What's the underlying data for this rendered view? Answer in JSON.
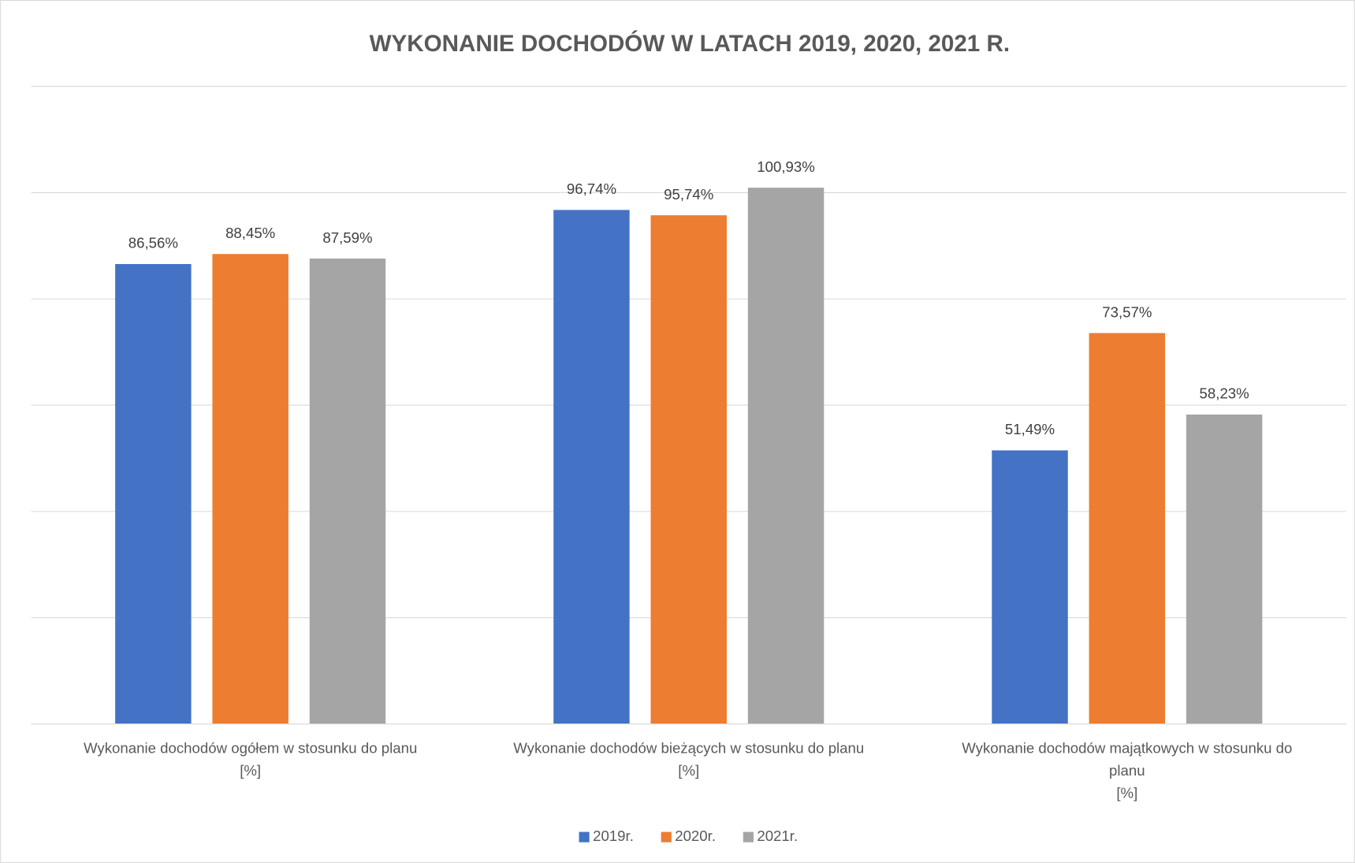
{
  "chart_data": {
    "type": "bar",
    "title": "WYKONANIE DOCHODÓW W LATACH 2019, 2020, 2021 R.",
    "categories": [
      "Wykonanie dochodów ogółem w stosunku do planu\n[%]",
      "Wykonanie dochodów bieżących w stosunku do planu\n[%]",
      "Wykonanie dochodów majątkowych w stosunku do\nplanu\n[%]"
    ],
    "series": [
      {
        "name": "2019r.",
        "color": "#4472c4",
        "values": [
          86.56,
          96.74,
          51.49
        ],
        "value_labels": [
          "86,56%",
          "96,74%",
          "51,49%"
        ]
      },
      {
        "name": "2020r.",
        "color": "#ed7d31",
        "values": [
          88.45,
          95.74,
          73.57
        ],
        "value_labels": [
          "88,45%",
          "95,74%",
          "73,57%"
        ]
      },
      {
        "name": "2021r.",
        "color": "#a5a5a5",
        "values": [
          87.59,
          100.93,
          58.23
        ],
        "value_labels": [
          "87,59%",
          "100,93%",
          "58,23%"
        ]
      }
    ],
    "ylim": [
      0,
      120
    ],
    "yticks": [
      0,
      20,
      40,
      60,
      80,
      100,
      120
    ],
    "grid": true,
    "legend": "bottom"
  }
}
